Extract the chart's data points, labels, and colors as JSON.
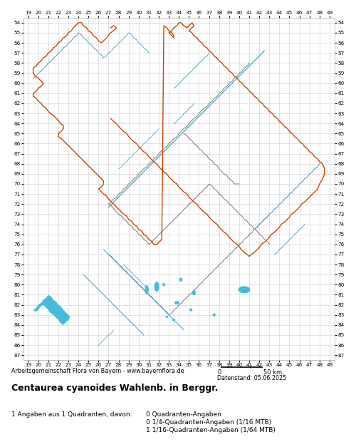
{
  "title": "Centaurea cyanoides Wahlenb. in Berggr.",
  "subtitle": "Arbeitsgemeinschaft Flora von Bayern - www.bayernflora.de",
  "date_label": "Datenstand: 05.06.2025",
  "stats_line1": "1 Angaben aus 1 Quadranten, davon:",
  "stats_right1": "0 Quadranten-Angaben",
  "stats_right2": "0 1/4-Quadranten-Angaben (1/16 MTB)",
  "stats_right3": "1 1/16-Quadranten-Angaben (1/64 MTB)",
  "x_ticks": [
    19,
    20,
    21,
    22,
    23,
    24,
    25,
    26,
    27,
    28,
    29,
    30,
    31,
    32,
    33,
    34,
    35,
    36,
    37,
    38,
    39,
    40,
    41,
    42,
    43,
    44,
    45,
    46,
    47,
    48,
    49
  ],
  "y_ticks": [
    54,
    55,
    56,
    57,
    58,
    59,
    60,
    61,
    62,
    63,
    64,
    65,
    66,
    67,
    68,
    69,
    70,
    71,
    72,
    73,
    74,
    75,
    76,
    77,
    78,
    79,
    80,
    81,
    82,
    83,
    84,
    85,
    86,
    87
  ],
  "x_min": 18.5,
  "x_max": 49.5,
  "y_min": 53.5,
  "y_max": 87.5,
  "grid_color": "#cccccc",
  "background_color": "#ffffff",
  "border_color_outer": "#cc4400",
  "border_color_inner": "#777777",
  "river_color": "#55aacc",
  "lake_color": "#44bbdd",
  "map_bg": "#ffffff",
  "bav_outer_x": [
    27.0,
    26.7,
    26.3,
    26.0,
    25.7,
    25.3,
    25.0,
    24.8,
    24.5,
    24.2,
    24.0,
    23.7,
    23.5,
    23.2,
    23.0,
    22.8,
    22.5,
    22.2,
    22.0,
    21.7,
    21.5,
    21.2,
    21.0,
    20.8,
    20.5,
    20.2,
    20.0,
    19.8,
    19.5,
    19.5,
    19.5,
    19.7,
    20.0,
    20.2,
    20.5,
    20.7,
    21.0,
    21.2,
    21.0,
    20.8,
    20.5,
    20.3,
    20.2,
    20.0,
    19.8,
    19.7,
    19.5,
    19.5,
    19.8,
    20.0,
    20.3,
    20.5,
    20.8,
    21.0,
    21.3,
    21.5,
    21.7,
    22.0,
    22.0,
    22.2,
    22.5,
    22.5,
    22.3,
    22.2,
    22.0,
    22.0,
    22.2,
    22.5,
    22.8,
    23.0,
    23.2,
    23.5,
    23.8,
    24.0,
    24.2,
    24.5,
    24.7,
    25.0,
    25.3,
    25.5,
    25.7,
    26.0,
    26.2,
    26.5,
    26.5,
    26.7,
    27.0,
    27.2,
    27.5,
    27.5,
    27.3,
    27.2,
    27.0,
    27.2,
    27.5,
    27.8,
    28.0,
    28.3,
    28.5,
    28.8,
    29.0,
    29.3,
    29.5,
    29.8,
    30.0,
    30.3,
    30.5,
    30.8,
    31.0,
    31.2,
    31.5,
    31.7,
    32.0,
    32.2,
    32.5,
    32.8,
    33.0,
    33.3,
    33.5,
    33.5,
    33.3,
    33.5,
    33.8,
    34.0,
    34.2,
    34.5,
    34.8,
    35.0,
    35.2,
    35.5,
    35.7,
    36.0,
    36.0,
    35.8,
    35.5,
    35.3,
    35.2,
    35.5,
    35.8,
    36.0,
    36.3,
    36.5,
    36.8,
    37.0,
    37.2,
    37.5,
    37.8,
    38.0,
    38.3,
    38.5,
    38.8,
    39.0,
    39.2,
    39.5,
    39.8,
    40.0,
    40.2,
    40.5,
    40.8,
    41.0,
    41.3,
    41.5,
    41.8,
    42.0,
    42.2,
    42.5,
    42.8,
    43.0,
    43.3,
    43.5,
    43.8,
    44.0,
    44.2,
    44.5,
    44.8,
    45.0,
    45.2,
    45.5,
    45.8,
    46.0,
    46.3,
    46.5,
    46.8,
    47.0,
    47.2,
    47.5,
    47.8,
    48.0,
    48.2,
    48.5,
    48.5,
    48.3,
    48.2,
    48.0,
    47.8,
    47.5,
    47.3,
    47.0,
    46.8,
    46.5,
    46.2,
    46.0,
    45.8,
    45.5,
    45.2,
    45.0,
    44.8,
    44.5,
    44.2,
    44.0,
    43.8,
    43.5,
    43.2,
    43.0,
    42.8,
    42.5,
    42.2,
    42.0,
    41.8,
    41.5,
    41.2,
    41.0,
    40.8,
    40.5,
    40.2,
    40.0,
    39.8,
    39.5,
    39.2,
    39.0,
    38.8,
    38.5,
    38.2,
    38.0,
    37.8,
    37.5,
    37.2,
    37.0,
    36.8,
    36.5,
    36.2,
    36.0,
    35.8,
    35.5,
    35.2,
    35.0,
    34.8,
    34.5,
    34.2,
    34.0,
    33.8,
    33.5,
    33.2,
    33.0,
    32.8,
    32.5,
    32.2,
    32.0,
    31.8,
    31.5,
    31.2,
    31.0,
    30.8,
    30.5,
    30.2,
    30.0,
    29.8,
    29.5,
    29.2,
    29.0,
    28.8,
    28.5,
    28.2,
    28.0,
    27.8,
    27.5,
    27.3,
    27.0
  ],
  "bav_outer_y": [
    54.8,
    54.5,
    54.3,
    54.3,
    54.3,
    54.3,
    54.3,
    54.5,
    54.7,
    55.0,
    55.2,
    55.5,
    55.7,
    55.8,
    56.0,
    56.2,
    56.3,
    56.5,
    56.7,
    57.0,
    57.2,
    57.5,
    57.7,
    57.8,
    58.0,
    58.2,
    58.5,
    58.8,
    59.0,
    59.5,
    60.0,
    60.2,
    60.5,
    60.8,
    61.0,
    61.2,
    61.5,
    61.7,
    62.0,
    62.3,
    62.5,
    62.7,
    63.0,
    63.2,
    63.5,
    63.7,
    64.0,
    64.3,
    64.5,
    64.7,
    65.0,
    65.2,
    65.5,
    65.7,
    65.8,
    66.0,
    66.2,
    66.5,
    66.8,
    67.0,
    67.2,
    67.5,
    67.8,
    68.0,
    68.2,
    68.5,
    68.7,
    69.0,
    69.2,
    69.5,
    69.8,
    70.0,
    70.2,
    70.5,
    70.7,
    71.0,
    71.2,
    71.5,
    71.7,
    72.0,
    72.2,
    72.5,
    72.7,
    73.0,
    73.5,
    74.0,
    74.2,
    74.5,
    74.8,
    75.0,
    75.3,
    75.5,
    75.7,
    76.0,
    76.0,
    75.8,
    75.5,
    75.3,
    75.0,
    74.8,
    74.5,
    74.3,
    74.0,
    73.8,
    73.5,
    73.3,
    73.0,
    72.8,
    72.5,
    72.3,
    72.0,
    71.8,
    71.5,
    71.3,
    71.0,
    70.7,
    70.5,
    70.2,
    70.0,
    69.5,
    69.0,
    68.8,
    68.5,
    68.3,
    68.0,
    67.8,
    67.5,
    67.3,
    67.0,
    66.8,
    66.5,
    66.3,
    66.0,
    65.7,
    65.5,
    65.3,
    65.0,
    64.8,
    64.5,
    64.3,
    64.0,
    63.8,
    63.5,
    63.2,
    63.0,
    62.8,
    62.5,
    62.2,
    62.0,
    61.8,
    61.5,
    61.2,
    61.0,
    60.7,
    60.5,
    60.2,
    60.0,
    59.8,
    59.5,
    59.2,
    59.0,
    58.7,
    58.5,
    58.2,
    58.0,
    57.8,
    57.5,
    57.2,
    57.0,
    56.8,
    56.5,
    56.2,
    56.0,
    55.8,
    55.5,
    55.2,
    55.0,
    54.8,
    54.5,
    54.3,
    54.0,
    53.8,
    53.8,
    54.0,
    54.2,
    54.5,
    54.7,
    55.0,
    55.2,
    55.5,
    55.7,
    56.0,
    56.2,
    56.5,
    56.7,
    57.0,
    57.3,
    57.5,
    57.8,
    58.0,
    58.3,
    58.5,
    58.7,
    59.0,
    59.3,
    59.5,
    59.8,
    60.0,
    60.3,
    60.5,
    60.8,
    61.0,
    61.3,
    61.5,
    61.8,
    62.0,
    62.3,
    62.5,
    62.8,
    63.0,
    63.3,
    63.5,
    63.8,
    64.0,
    64.3,
    64.5,
    64.8,
    65.0,
    65.3,
    65.5,
    65.8,
    66.0,
    66.3,
    66.5,
    66.8,
    67.0,
    67.3,
    67.5,
    67.8,
    68.0,
    68.3,
    68.5,
    68.8,
    69.0,
    69.3,
    69.5,
    69.8,
    70.0,
    70.3,
    70.5,
    70.8,
    71.0,
    71.3,
    71.5,
    71.8,
    72.0,
    72.3,
    72.5,
    72.8,
    73.0,
    73.3,
    73.5,
    73.8,
    74.0,
    74.3,
    74.5,
    74.8,
    75.0,
    75.3,
    75.5,
    75.5,
    75.3,
    75.0,
    74.8,
    74.5,
    74.8,
    75.0,
    54.8
  ]
}
